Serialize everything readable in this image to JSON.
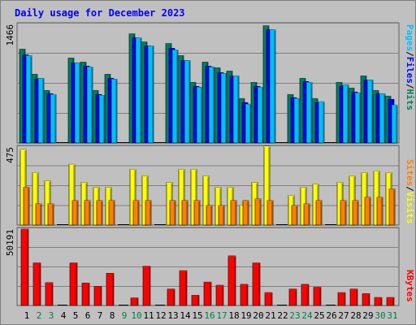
{
  "colors": {
    "background": "#c0c0c0",
    "border": "#808080",
    "title": "#0000ff",
    "hits": "#00805c",
    "files": "#0000ff",
    "pages": "#00c0ff",
    "visits": "#ffff00",
    "sites": "#ff8000",
    "kbytes": "#ff0000",
    "weekend_label": "#008040",
    "weekday_label": "#000000",
    "slash": "#000000"
  },
  "chart_data": [
    {
      "type": "bar",
      "title": "Daily usage for December 2023",
      "categories": [
        "1",
        "2",
        "3",
        "4",
        "5",
        "6",
        "7",
        "8",
        "9",
        "10",
        "11",
        "12",
        "13",
        "14",
        "15",
        "16",
        "17",
        "18",
        "19",
        "20",
        "21",
        "22",
        "23",
        "24",
        "25",
        "26",
        "27",
        "28",
        "29",
        "30",
        "31"
      ],
      "weekend_days": [
        "2",
        "3",
        "9",
        "10",
        "16",
        "17",
        "23",
        "24",
        "30",
        "31"
      ],
      "ymax_label": "1466",
      "ylim": [
        0,
        1466
      ],
      "legend": [
        "Pages",
        "/",
        "Files",
        "/",
        "Hits"
      ],
      "series": [
        {
          "name": "Hits",
          "values": [
            1160,
            850,
            650,
            0,
            1050,
            1000,
            650,
            850,
            0,
            1350,
            1250,
            0,
            1230,
            1080,
            750,
            1000,
            930,
            890,
            550,
            750,
            1450,
            0,
            600,
            800,
            550,
            0,
            750,
            680,
            830,
            650,
            580
          ]
        },
        {
          "name": "Files",
          "values": [
            1090,
            790,
            610,
            0,
            990,
            950,
            600,
            800,
            0,
            1300,
            1200,
            0,
            1170,
            1020,
            700,
            950,
            870,
            830,
            500,
            700,
            1400,
            0,
            560,
            760,
            500,
            0,
            700,
            630,
            780,
            610,
            540
          ]
        },
        {
          "name": "Pages",
          "values": [
            1080,
            800,
            600,
            0,
            990,
            940,
            590,
            790,
            0,
            1300,
            1200,
            0,
            1150,
            1020,
            690,
            940,
            860,
            830,
            480,
            690,
            1400,
            0,
            550,
            750,
            510,
            0,
            720,
            620,
            780,
            610,
            470
          ]
        }
      ]
    },
    {
      "type": "bar",
      "categories": [
        "1",
        "2",
        "3",
        "4",
        "5",
        "6",
        "7",
        "8",
        "9",
        "10",
        "11",
        "12",
        "13",
        "14",
        "15",
        "16",
        "17",
        "18",
        "19",
        "20",
        "21",
        "22",
        "23",
        "24",
        "25",
        "26",
        "27",
        "28",
        "29",
        "30",
        "31"
      ],
      "ymax_label": "475",
      "ylim": [
        0,
        475
      ],
      "legend": [
        "Sites",
        "/",
        "Visits"
      ],
      "series": [
        {
          "name": "Visits",
          "values": [
            460,
            320,
            270,
            0,
            370,
            260,
            230,
            230,
            0,
            340,
            300,
            0,
            260,
            340,
            340,
            300,
            230,
            230,
            120,
            260,
            480,
            0,
            180,
            230,
            250,
            0,
            260,
            300,
            320,
            330,
            320
          ]
        },
        {
          "name": "Sites",
          "values": [
            230,
            130,
            130,
            0,
            150,
            150,
            150,
            150,
            0,
            150,
            150,
            0,
            150,
            150,
            150,
            120,
            120,
            150,
            150,
            160,
            150,
            0,
            120,
            130,
            150,
            0,
            150,
            150,
            170,
            170,
            220
          ]
        }
      ]
    },
    {
      "type": "bar",
      "categories": [
        "1",
        "2",
        "3",
        "4",
        "5",
        "6",
        "7",
        "8",
        "9",
        "10",
        "11",
        "12",
        "13",
        "14",
        "15",
        "16",
        "17",
        "18",
        "19",
        "20",
        "21",
        "22",
        "23",
        "24",
        "25",
        "26",
        "27",
        "28",
        "29",
        "30",
        "31"
      ],
      "ymax_label": "50191",
      "ylim": [
        0,
        50191
      ],
      "legend": [
        "KBytes"
      ],
      "series": [
        {
          "name": "KBytes",
          "values": [
            50191,
            28000,
            15000,
            0,
            28000,
            14800,
            12600,
            21200,
            0,
            5000,
            25800,
            0,
            10800,
            22900,
            6700,
            15400,
            13300,
            32600,
            13900,
            28000,
            8500,
            0,
            10800,
            13900,
            12000,
            0,
            8500,
            10800,
            7800,
            5300,
            5300
          ]
        }
      ]
    }
  ]
}
